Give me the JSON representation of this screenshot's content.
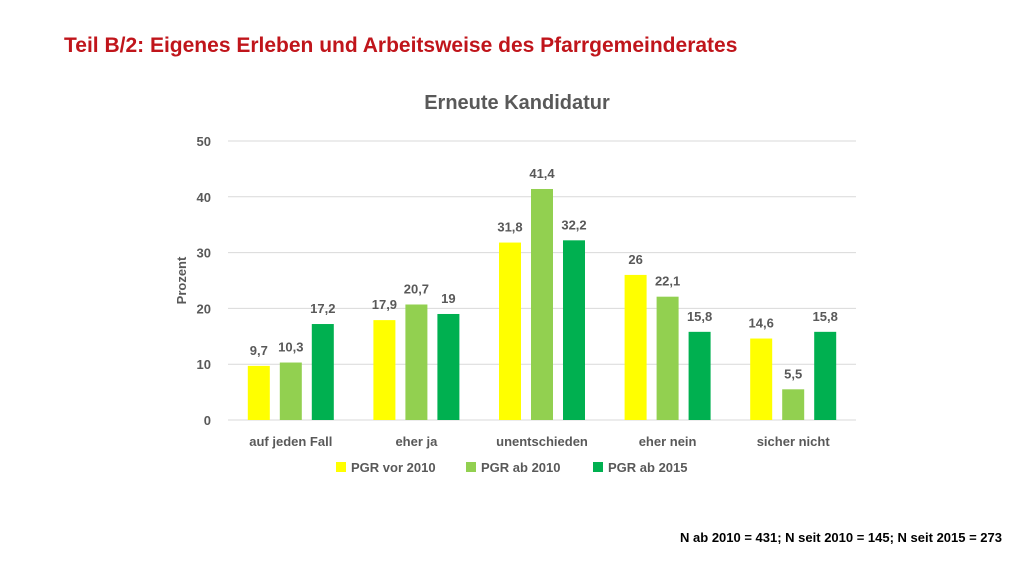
{
  "slide": {
    "title": "Teil B/2: Eigenes Erleben und Arbeitsweise des Pfarrgemeinderates",
    "footnote": "N ab 2010 = 431; N seit 2010 = 145; N seit 2015 = 273"
  },
  "chart_data": {
    "type": "bar",
    "title": "Erneute Kandidatur",
    "ylabel": "Prozent",
    "xlabel": "",
    "ylim": [
      0,
      50
    ],
    "yticks": [
      0,
      10,
      20,
      30,
      40,
      50
    ],
    "grid": true,
    "legend_position": "bottom",
    "categories": [
      "auf jeden Fall",
      "eher ja",
      "unentschieden",
      "eher nein",
      "sicher nicht"
    ],
    "series": [
      {
        "name": "PGR vor 2010",
        "color": "#ffff00",
        "values": [
          9.7,
          17.9,
          31.8,
          26,
          14.6
        ],
        "labels": [
          "9,7",
          "17,9",
          "31,8",
          "26",
          "14,6"
        ]
      },
      {
        "name": "PGR ab 2010",
        "color": "#92d050",
        "values": [
          10.3,
          20.7,
          41.4,
          22.1,
          5.5
        ],
        "labels": [
          "10,3",
          "20,7",
          "41,4",
          "22,1",
          "5,5"
        ]
      },
      {
        "name": "PGR ab 2015",
        "color": "#00b050",
        "values": [
          17.2,
          19,
          32.2,
          15.8,
          15.8
        ],
        "labels": [
          "17,2",
          "19",
          "32,2",
          "15,8",
          "15,8"
        ]
      }
    ]
  }
}
